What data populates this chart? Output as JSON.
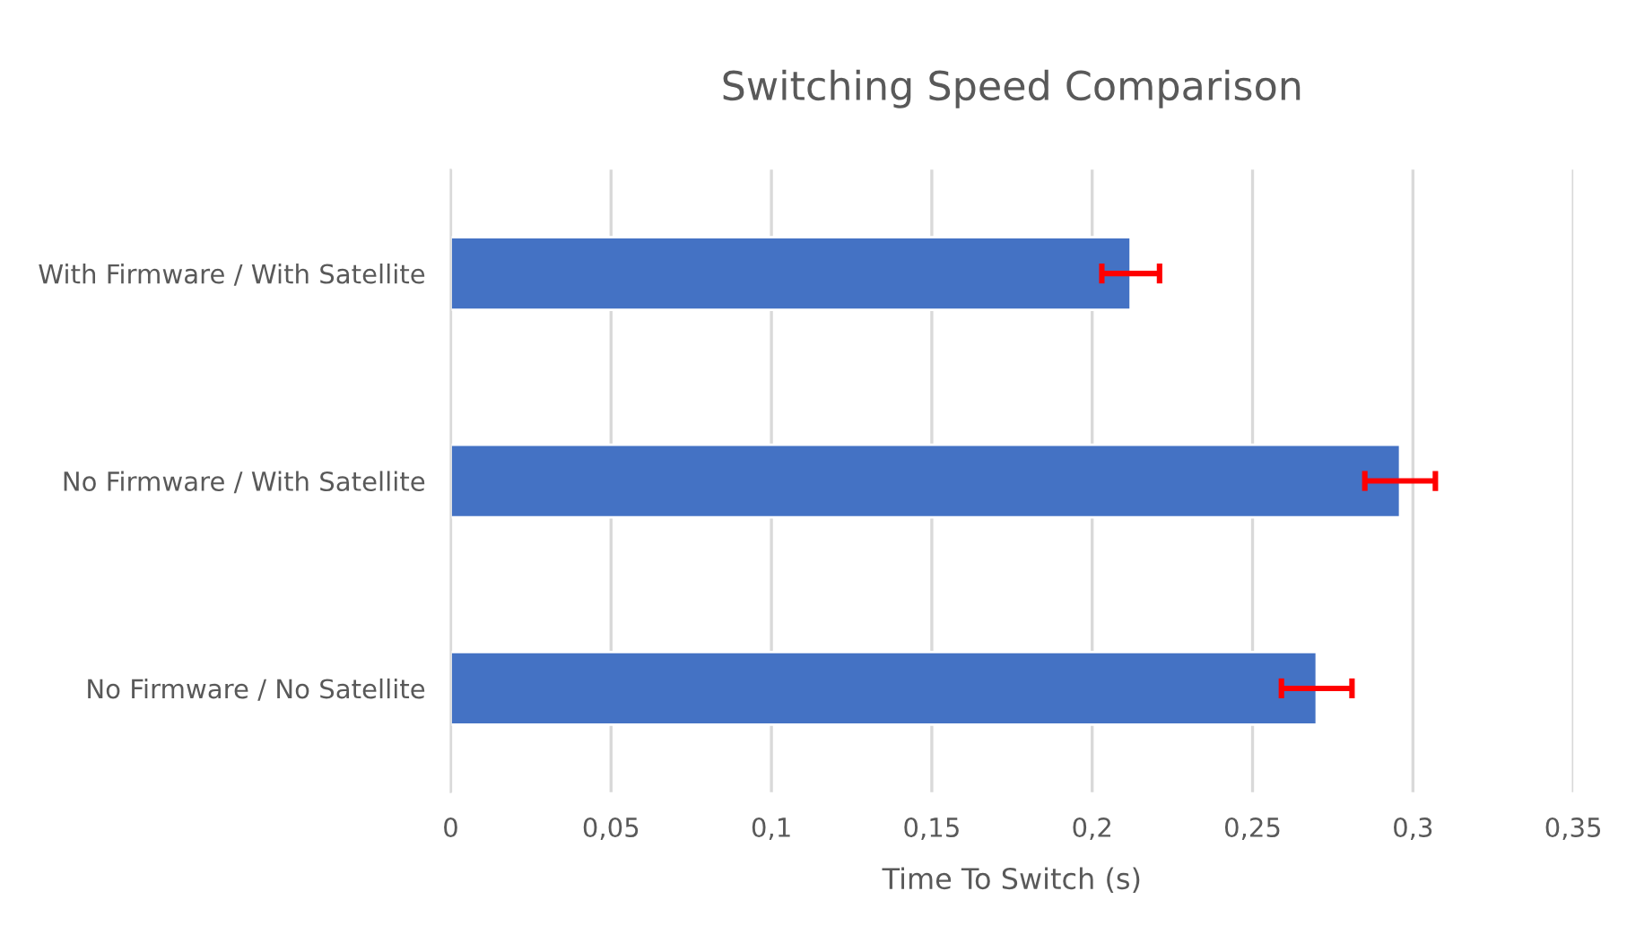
{
  "chart_data": {
    "type": "bar",
    "orientation": "horizontal",
    "title": "Switching Speed Comparison",
    "xlabel": "Time To Switch (s)",
    "categories": [
      "With Firmware / With Satellite",
      "No Firmware / With Satellite",
      "No Firmware / No Satellite"
    ],
    "values": [
      0.212,
      0.296,
      0.27
    ],
    "errors": [
      0.009,
      0.011,
      0.011
    ],
    "color": "#4472c4",
    "xlim": [
      0,
      0.35
    ],
    "xticks": [
      {
        "value": 0,
        "label": "0"
      },
      {
        "value": 0.05,
        "label": "0,05"
      },
      {
        "value": 0.1,
        "label": "0,1"
      },
      {
        "value": 0.15,
        "label": "0,15"
      },
      {
        "value": 0.2,
        "label": "0,2"
      },
      {
        "value": 0.25,
        "label": "0,25"
      },
      {
        "value": 0.3,
        "label": "0,3"
      },
      {
        "value": 0.35,
        "label": "0,35"
      }
    ],
    "grid": "x",
    "legend": false
  }
}
